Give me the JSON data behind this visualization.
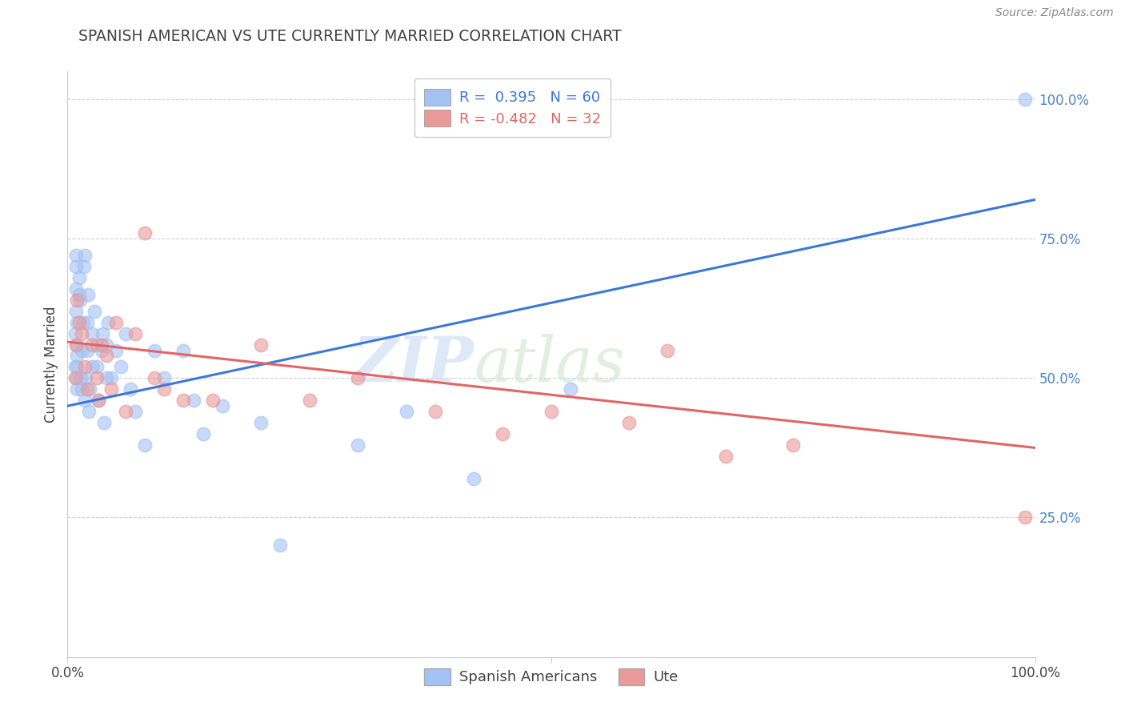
{
  "title": "SPANISH AMERICAN VS UTE CURRENTLY MARRIED CORRELATION CHART",
  "source": "Source: ZipAtlas.com",
  "ylabel": "Currently Married",
  "xlim": [
    0,
    1.0
  ],
  "ylim": [
    0.0,
    1.05
  ],
  "blue_R": 0.395,
  "blue_N": 60,
  "pink_R": -0.482,
  "pink_N": 32,
  "blue_color": "#a4c2f4",
  "pink_color": "#ea9999",
  "blue_line_color": "#3c78d8",
  "pink_line_color": "#e06666",
  "legend_blue_label": "Spanish Americans",
  "legend_pink_label": "Ute",
  "watermark_zip": "ZIP",
  "watermark_atlas": "atlas",
  "title_color": "#434343",
  "axis_label_color": "#434343",
  "ytick_color": "#4a86c8",
  "blue_line_y_start": 0.45,
  "blue_line_y_end": 0.82,
  "pink_line_y_start": 0.565,
  "pink_line_y_end": 0.375,
  "blue_scatter_x": [
    0.008,
    0.008,
    0.009,
    0.009,
    0.009,
    0.009,
    0.01,
    0.01,
    0.01,
    0.01,
    0.01,
    0.01,
    0.012,
    0.012,
    0.013,
    0.014,
    0.015,
    0.015,
    0.016,
    0.017,
    0.018,
    0.018,
    0.019,
    0.02,
    0.02,
    0.021,
    0.022,
    0.023,
    0.025,
    0.025,
    0.028,
    0.03,
    0.03,
    0.032,
    0.035,
    0.036,
    0.038,
    0.04,
    0.04,
    0.042,
    0.045,
    0.05,
    0.055,
    0.06,
    0.065,
    0.07,
    0.08,
    0.09,
    0.1,
    0.12,
    0.13,
    0.14,
    0.16,
    0.2,
    0.22,
    0.3,
    0.35,
    0.42,
    0.52,
    0.99
  ],
  "blue_scatter_y": [
    0.52,
    0.58,
    0.62,
    0.66,
    0.7,
    0.72,
    0.48,
    0.5,
    0.52,
    0.54,
    0.56,
    0.6,
    0.65,
    0.68,
    0.64,
    0.5,
    0.48,
    0.55,
    0.6,
    0.7,
    0.72,
    0.46,
    0.5,
    0.55,
    0.6,
    0.65,
    0.44,
    0.48,
    0.52,
    0.58,
    0.62,
    0.52,
    0.56,
    0.46,
    0.55,
    0.58,
    0.42,
    0.5,
    0.56,
    0.6,
    0.5,
    0.55,
    0.52,
    0.58,
    0.48,
    0.44,
    0.38,
    0.55,
    0.5,
    0.55,
    0.46,
    0.4,
    0.45,
    0.42,
    0.2,
    0.38,
    0.44,
    0.32,
    0.48,
    1.0
  ],
  "pink_scatter_x": [
    0.008,
    0.009,
    0.01,
    0.012,
    0.015,
    0.018,
    0.02,
    0.025,
    0.03,
    0.032,
    0.035,
    0.04,
    0.045,
    0.05,
    0.06,
    0.07,
    0.08,
    0.09,
    0.1,
    0.12,
    0.15,
    0.2,
    0.25,
    0.3,
    0.38,
    0.45,
    0.5,
    0.58,
    0.62,
    0.68,
    0.75,
    0.99
  ],
  "pink_scatter_y": [
    0.5,
    0.56,
    0.64,
    0.6,
    0.58,
    0.52,
    0.48,
    0.56,
    0.5,
    0.46,
    0.56,
    0.54,
    0.48,
    0.6,
    0.44,
    0.58,
    0.76,
    0.5,
    0.48,
    0.46,
    0.46,
    0.56,
    0.46,
    0.5,
    0.44,
    0.4,
    0.44,
    0.42,
    0.55,
    0.36,
    0.38,
    0.25
  ]
}
